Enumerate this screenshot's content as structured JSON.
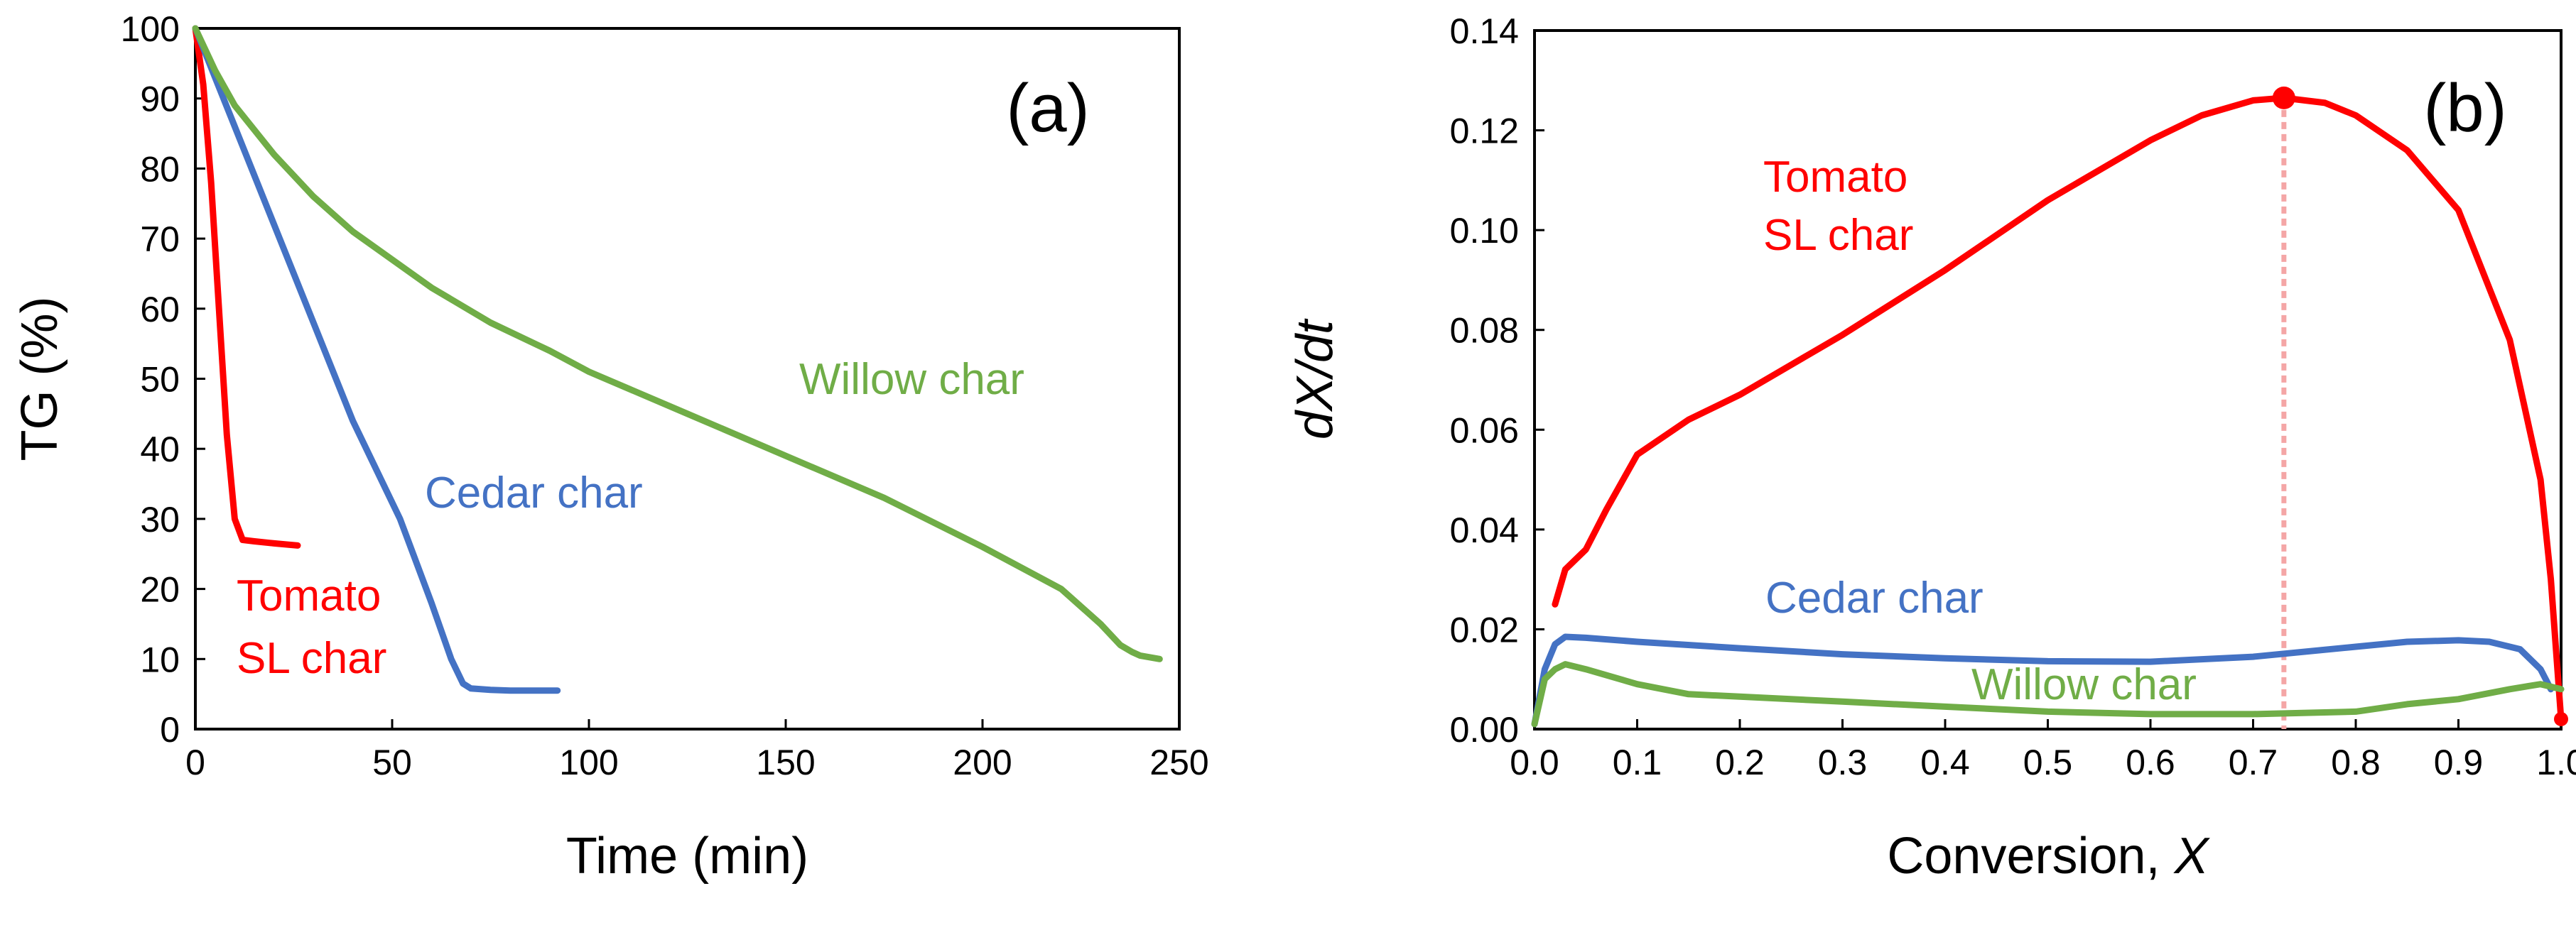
{
  "chart_data": [
    {
      "type": "line",
      "panel_label": "(a)",
      "xlabel": "Time (min)",
      "ylabel": "TG (%)",
      "xlim": [
        0,
        250
      ],
      "ylim": [
        0,
        100
      ],
      "xticks": [
        0,
        50,
        100,
        150,
        200,
        250
      ],
      "yticks": [
        0,
        10,
        20,
        30,
        40,
        50,
        60,
        70,
        80,
        90,
        100
      ],
      "grid": false,
      "series": [
        {
          "name": "Tomato SL char",
          "label_lines": [
            "Tomato",
            "SL char"
          ],
          "color": "#ff0000",
          "x": [
            0,
            2,
            4,
            6,
            8,
            10,
            12,
            15,
            20,
            26
          ],
          "y": [
            100,
            92,
            78,
            60,
            42,
            30,
            27,
            26.8,
            26.5,
            26.2
          ]
        },
        {
          "name": "Cedar char",
          "label_lines": [
            "Cedar char"
          ],
          "color": "#4472c4",
          "x": [
            0,
            5,
            10,
            20,
            30,
            40,
            52,
            60,
            65,
            68,
            70,
            75,
            80,
            92
          ],
          "y": [
            100,
            93,
            86,
            72,
            58,
            44,
            30,
            18,
            10,
            6.5,
            5.8,
            5.6,
            5.5,
            5.5
          ],
          "label_anchor_data": [
            57,
            35
          ]
        },
        {
          "name": "Willow char",
          "label_lines": [
            "Willow char"
          ],
          "color": "#70ad47",
          "x": [
            0,
            5,
            10,
            20,
            30,
            40,
            50,
            60,
            75,
            90,
            100,
            125,
            150,
            175,
            200,
            210,
            220,
            230,
            235,
            238,
            240,
            245
          ],
          "y": [
            100,
            94,
            89,
            82,
            76,
            71,
            67,
            63,
            58,
            54,
            51,
            45,
            39,
            33,
            26,
            23,
            20,
            15,
            12,
            11,
            10.5,
            10
          ],
          "label_anchor_data": [
            146,
            50
          ]
        }
      ]
    },
    {
      "type": "line",
      "panel_label": "(b)",
      "xlabel_main": "Conversion, ",
      "xlabel_var": "X",
      "ylabel": "dX/dt",
      "xlim": [
        0,
        1.0
      ],
      "ylim": [
        0,
        0.14
      ],
      "xticks": [
        "0.0",
        "0.1",
        "0.2",
        "0.3",
        "0.4",
        "0.5",
        "0.6",
        "0.7",
        "0.8",
        "0.9",
        "1.0"
      ],
      "yticks": [
        "0.00",
        "0.02",
        "0.04",
        "0.06",
        "0.08",
        "0.10",
        "0.12",
        "0.14"
      ],
      "grid": false,
      "annotation": {
        "peak_x": 0.73,
        "peak_y": 0.1265
      },
      "series": [
        {
          "name": "Tomato SL char",
          "label_lines": [
            "Tomato",
            "SL char"
          ],
          "color": "#ff0000",
          "x": [
            0.02,
            0.03,
            0.05,
            0.07,
            0.1,
            0.15,
            0.2,
            0.3,
            0.4,
            0.5,
            0.6,
            0.65,
            0.7,
            0.73,
            0.77,
            0.8,
            0.85,
            0.9,
            0.95,
            0.98,
            0.99,
            1.0
          ],
          "y": [
            0.025,
            0.032,
            0.036,
            0.044,
            0.055,
            0.062,
            0.067,
            0.079,
            0.092,
            0.106,
            0.118,
            0.123,
            0.126,
            0.1265,
            0.1255,
            0.123,
            0.116,
            0.104,
            0.078,
            0.05,
            0.03,
            0.002
          ]
        },
        {
          "name": "Cedar char",
          "label_lines": [
            "Cedar char"
          ],
          "color": "#4472c4",
          "x": [
            0.0,
            0.01,
            0.02,
            0.03,
            0.05,
            0.1,
            0.2,
            0.3,
            0.4,
            0.5,
            0.6,
            0.7,
            0.8,
            0.85,
            0.9,
            0.93,
            0.96,
            0.98,
            0.99
          ],
          "y": [
            0.001,
            0.012,
            0.017,
            0.0185,
            0.0183,
            0.0175,
            0.0162,
            0.015,
            0.0142,
            0.0136,
            0.0135,
            0.0145,
            0.0165,
            0.0175,
            0.0178,
            0.0175,
            0.016,
            0.012,
            0.008
          ],
          "label_anchor_data": [
            0.46,
            0.022
          ]
        },
        {
          "name": "Willow char",
          "label_lines": [
            "Willow char"
          ],
          "color": "#70ad47",
          "x": [
            0.0,
            0.01,
            0.02,
            0.03,
            0.05,
            0.1,
            0.15,
            0.2,
            0.3,
            0.4,
            0.5,
            0.6,
            0.7,
            0.8,
            0.85,
            0.9,
            0.95,
            0.98,
            1.0
          ],
          "y": [
            0.001,
            0.01,
            0.012,
            0.013,
            0.012,
            0.009,
            0.007,
            0.0065,
            0.0055,
            0.0045,
            0.0035,
            0.003,
            0.003,
            0.0035,
            0.005,
            0.006,
            0.008,
            0.009,
            0.008
          ],
          "label_anchor_data": [
            0.55,
            0.0065
          ]
        }
      ]
    }
  ]
}
